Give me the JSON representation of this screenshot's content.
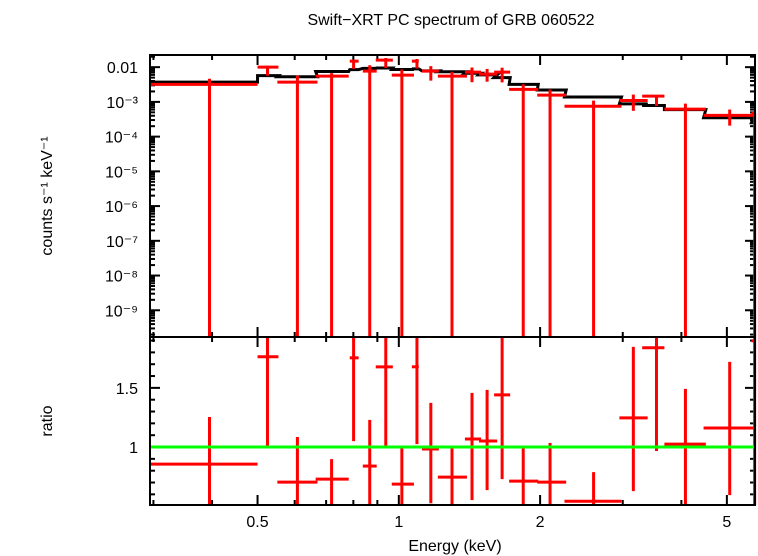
{
  "chart_data": {
    "type": "scatter",
    "title": "Swift−XRT PC spectrum of GRB 060522",
    "xlabel": "Energy (keV)",
    "x_scale": "log",
    "xlim": [
      0.295,
      5.74
    ],
    "x_ticks": [
      {
        "value": 0.5,
        "label": "0.5"
      },
      {
        "value": 1,
        "label": "1"
      },
      {
        "value": 2,
        "label": "2"
      },
      {
        "value": 5,
        "label": "5"
      }
    ],
    "colors": {
      "data": "#ff0000",
      "model": "#000000",
      "unity": "#00ff00",
      "frame": "#000000"
    },
    "panels": [
      {
        "name": "spectrum",
        "ylabel": "counts s⁻¹ keV⁻¹",
        "y_scale": "log",
        "ylim": [
          1.7e-10,
          0.0224
        ],
        "y_ticks": [
          {
            "value": 0.01,
            "label": "0.01"
          },
          {
            "value": 0.001,
            "label": "10⁻³"
          },
          {
            "value": 0.0001,
            "label": "10⁻⁴"
          },
          {
            "value": 1e-05,
            "label": "10⁻⁵"
          },
          {
            "value": 1e-06,
            "label": "10⁻⁶"
          },
          {
            "value": 1e-07,
            "label": "10⁻⁷"
          },
          {
            "value": 1e-08,
            "label": "10⁻⁸"
          },
          {
            "value": 1e-09,
            "label": "10⁻⁹"
          }
        ]
      },
      {
        "name": "ratio",
        "ylabel": "ratio",
        "y_scale": "linear",
        "ylim": [
          0.51,
          1.93
        ],
        "y_ticks": [
          {
            "value": 1,
            "label": "1"
          },
          {
            "value": 1.5,
            "label": "1.5"
          }
        ],
        "reference_line": 1
      }
    ],
    "bins": [
      {
        "e": 0.395,
        "elo": 0.295,
        "ehi": 0.5,
        "flux": 0.0032,
        "model": 0.0037,
        "ratio": 0.856,
        "rlo": 0.508,
        "rhi": 1.254
      },
      {
        "e": 0.525,
        "elo": 0.5,
        "ehi": 0.554,
        "flux": 0.01,
        "model": 0.0057,
        "ratio": 1.763,
        "rlo": 1.0,
        "rhi": 1.93
      },
      {
        "e": 0.608,
        "elo": 0.551,
        "ehi": 0.671,
        "flux": 0.0037,
        "model": 0.0053,
        "ratio": 0.703,
        "rlo": 0.51,
        "rhi": 1.085
      },
      {
        "e": 0.719,
        "elo": 0.665,
        "ehi": 0.782,
        "flux": 0.0055,
        "model": 0.0075,
        "ratio": 0.729,
        "rlo": 0.51,
        "rhi": 0.898
      },
      {
        "e": 0.801,
        "elo": 0.786,
        "ehi": 0.821,
        "flux": 0.0149,
        "model": 0.0085,
        "ratio": 1.754,
        "rlo": 1.05,
        "rhi": 1.93
      },
      {
        "e": 0.867,
        "elo": 0.838,
        "ehi": 0.897,
        "flux": 0.0077,
        "model": 0.0092,
        "ratio": 0.839,
        "rlo": 0.51,
        "rhi": 1.229
      },
      {
        "e": 0.938,
        "elo": 0.893,
        "ehi": 0.971,
        "flux": 0.016,
        "model": 0.0095,
        "ratio": 1.678,
        "rlo": 1.0,
        "rhi": 1.93
      },
      {
        "e": 1.015,
        "elo": 0.966,
        "ehi": 1.077,
        "flux": 0.0059,
        "model": 0.0086,
        "ratio": 0.686,
        "rlo": 0.51,
        "rhi": 1.0
      },
      {
        "e": 1.093,
        "elo": 1.066,
        "ehi": 1.103,
        "flux": 0.0149,
        "model": 0.0089,
        "ratio": 1.678,
        "rlo": 1.025,
        "rhi": 1.93
      },
      {
        "e": 1.17,
        "elo": 1.12,
        "ehi": 1.217,
        "flux": 0.0077,
        "model": 0.0078,
        "ratio": 0.983,
        "rlo": 0.525,
        "rhi": 1.373
      },
      {
        "e": 1.298,
        "elo": 1.211,
        "ehi": 1.397,
        "flux": 0.0055,
        "model": 0.0074,
        "ratio": 0.746,
        "rlo": 0.51,
        "rhi": 1.0
      },
      {
        "e": 1.432,
        "elo": 1.383,
        "ehi": 1.497,
        "flux": 0.0072,
        "model": 0.0067,
        "ratio": 1.068,
        "rlo": 0.551,
        "rhi": 1.458
      },
      {
        "e": 1.542,
        "elo": 1.482,
        "ehi": 1.62,
        "flux": 0.0063,
        "model": 0.006,
        "ratio": 1.051,
        "rlo": 0.636,
        "rhi": 1.483
      },
      {
        "e": 1.66,
        "elo": 1.596,
        "ehi": 1.727,
        "flux": 0.0072,
        "model": 0.005,
        "ratio": 1.441,
        "rlo": 0.729,
        "rhi": 1.93
      },
      {
        "e": 1.841,
        "elo": 1.718,
        "ehi": 1.982,
        "flux": 0.0023,
        "model": 0.0032,
        "ratio": 0.712,
        "rlo": 0.51,
        "rhi": 1.008
      },
      {
        "e": 2.1,
        "elo": 1.972,
        "ehi": 2.273,
        "flux": 0.00156,
        "model": 0.0022,
        "ratio": 0.703,
        "rlo": 0.51,
        "rhi": 1.034
      },
      {
        "e": 2.6,
        "elo": 2.254,
        "ehi": 2.982,
        "flux": 0.00075,
        "model": 0.00138,
        "ratio": 0.542,
        "rlo": 0.51,
        "rhi": 0.788
      },
      {
        "e": 3.16,
        "elo": 2.951,
        "ehi": 3.39,
        "flux": 0.0011,
        "model": 0.00088,
        "ratio": 1.246,
        "rlo": 0.627,
        "rhi": 1.847
      },
      {
        "e": 3.54,
        "elo": 3.3,
        "ehi": 3.68,
        "flux": 0.00146,
        "model": 0.00079,
        "ratio": 1.839,
        "rlo": 0.966,
        "rhi": 1.93
      },
      {
        "e": 4.08,
        "elo": 3.68,
        "ehi": 4.51,
        "flux": 0.00062,
        "model": 0.0006,
        "ratio": 1.025,
        "rlo": 0.51,
        "rhi": 1.492
      },
      {
        "e": 5.07,
        "elo": 4.46,
        "ehi": 5.7,
        "flux": 0.00041,
        "model": 0.00035,
        "ratio": 1.161,
        "rlo": 0.593,
        "rhi": 1.72
      },
      {
        "e": 5.73,
        "elo": 5.64,
        "ehi": 5.74,
        "flux": 0.00047,
        "model": 0.00025,
        "ratio": 1.898,
        "rlo": 0.508,
        "rhi": 1.93
      }
    ]
  }
}
